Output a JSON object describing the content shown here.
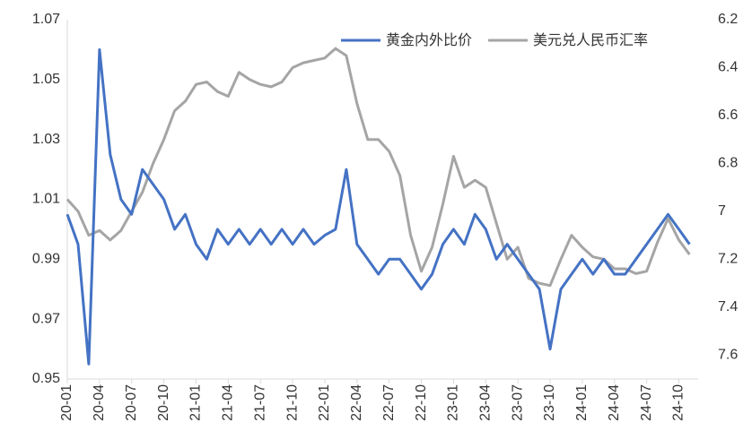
{
  "chart_data": {
    "type": "line",
    "categories": [
      "20-01",
      null,
      null,
      "20-04",
      null,
      null,
      "20-07",
      null,
      null,
      "20-10",
      null,
      null,
      "21-01",
      null,
      null,
      "21-04",
      null,
      null,
      "21-07",
      null,
      null,
      "21-10",
      null,
      null,
      "22-01",
      null,
      null,
      "22-04",
      null,
      null,
      "22-07",
      null,
      null,
      "22-10",
      null,
      null,
      "23-01",
      null,
      null,
      "23-04",
      null,
      null,
      "23-07",
      null,
      null,
      "23-10",
      null,
      null,
      "24-01",
      null,
      null,
      "24-04",
      null,
      null,
      "24-07",
      null,
      null,
      "24-10",
      null
    ],
    "series": [
      {
        "name": "黄金内外比价",
        "color": "#4472c4",
        "values": [
          1.005,
          0.995,
          0.955,
          1.06,
          1.025,
          1.01,
          1.005,
          1.02,
          1.015,
          1.01,
          1.0,
          1.005,
          0.995,
          0.99,
          1.0,
          0.995,
          1.0,
          0.995,
          1.0,
          0.995,
          1.0,
          0.995,
          1.0,
          0.995,
          0.998,
          1.0,
          1.02,
          0.995,
          0.99,
          0.985,
          0.99,
          0.99,
          0.985,
          0.98,
          0.985,
          0.995,
          1.0,
          0.995,
          1.005,
          1.0,
          0.99,
          0.995,
          0.99,
          0.985,
          0.98,
          0.96,
          0.98,
          0.985,
          0.99,
          0.985,
          0.99,
          0.985,
          0.985,
          0.99,
          0.995,
          1.0,
          1.005,
          1.0,
          0.995
        ]
      },
      {
        "name": "美元兑人民币汇率",
        "color": "#a5a5a5",
        "axis": "y2",
        "values": [
          6.95,
          7.0,
          7.1,
          7.08,
          7.12,
          7.08,
          7.0,
          6.92,
          6.8,
          6.7,
          6.58,
          6.54,
          6.47,
          6.46,
          6.5,
          6.52,
          6.42,
          6.45,
          6.47,
          6.48,
          6.46,
          6.4,
          6.38,
          6.37,
          6.36,
          6.32,
          6.35,
          6.55,
          6.7,
          6.7,
          6.75,
          6.85,
          7.1,
          7.25,
          7.15,
          6.97,
          6.77,
          6.9,
          6.87,
          6.9,
          7.05,
          7.2,
          7.15,
          7.28,
          7.3,
          7.31,
          7.2,
          7.1,
          7.15,
          7.19,
          7.2,
          7.24,
          7.24,
          7.26,
          7.25,
          7.13,
          7.03,
          7.12,
          7.18
        ]
      }
    ],
    "ylim": [
      0.95,
      1.07
    ],
    "yticks": [
      0.95,
      0.97,
      0.99,
      1.01,
      1.03,
      1.05,
      1.07
    ],
    "y2lim": [
      6.2,
      7.7
    ],
    "y2ticks": [
      6.2,
      6.4,
      6.6,
      6.8,
      7,
      7.2,
      7.4,
      7.6
    ],
    "y2_inverted": true,
    "grid": false,
    "legend": "top-right"
  }
}
